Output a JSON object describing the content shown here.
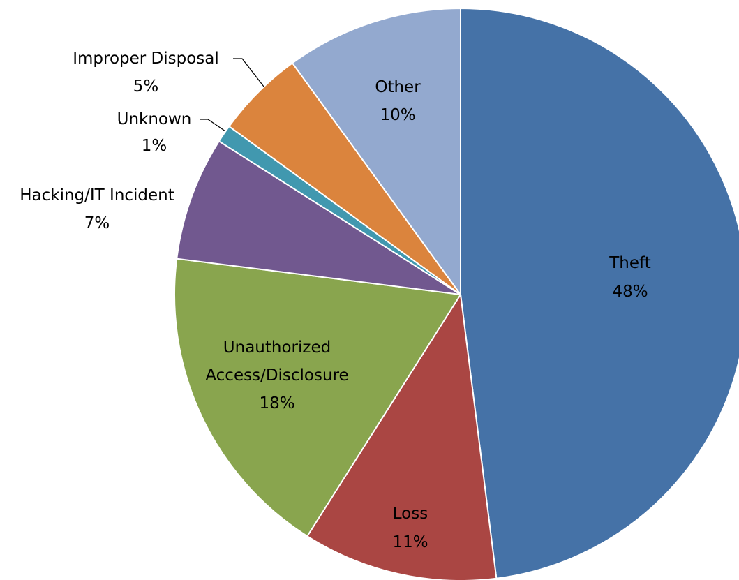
{
  "chart_data": {
    "type": "pie",
    "title": "",
    "slices": [
      {
        "name": "Theft",
        "value": 48,
        "percent_label": "48%",
        "color": "#4572A7"
      },
      {
        "name": "Loss",
        "value": 11,
        "percent_label": "11%",
        "color": "#AA4643"
      },
      {
        "name": "Unauthorized Access/Disclosure",
        "value": 18,
        "percent_label": "18%",
        "color": "#89A54E"
      },
      {
        "name": "Hacking/IT Incident",
        "value": 7,
        "percent_label": "7%",
        "color": "#71588F"
      },
      {
        "name": "Unknown",
        "value": 1,
        "percent_label": "1%",
        "color": "#4198AF"
      },
      {
        "name": "Improper Disposal",
        "value": 5,
        "percent_label": "5%",
        "color": "#DB843D"
      },
      {
        "name": "Other",
        "value": 10,
        "percent_label": "10%",
        "color": "#93A9CF"
      }
    ],
    "start": "12 o'clock",
    "direction": "clockwise",
    "legend": "none (data labels on or beside slices)"
  }
}
